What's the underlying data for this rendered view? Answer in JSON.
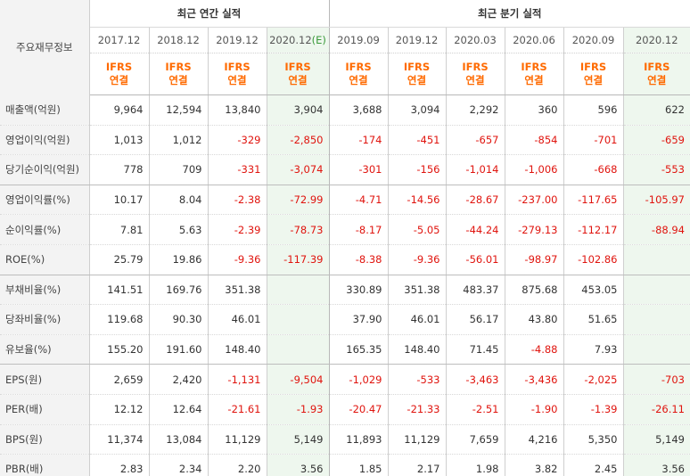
{
  "header": {
    "row_label": "주요재무정보",
    "annual_title": "최근 연간 실적",
    "quarterly_title": "최근 분기 실적",
    "annual_periods": [
      "2017.12",
      "2018.12",
      "2019.12",
      "2020.12"
    ],
    "quarterly_periods": [
      "2019.09",
      "2019.12",
      "2020.03",
      "2020.06",
      "2020.09",
      "2020.12"
    ],
    "estimate_mark": "(E)",
    "ifrs_line1": "IFRS",
    "ifrs_line2": "연결"
  },
  "rows": [
    {
      "label": "매출액(억원)",
      "values": [
        "9,964",
        "12,594",
        "13,840",
        "3,904",
        "3,688",
        "3,094",
        "2,292",
        "360",
        "596",
        "622"
      ]
    },
    {
      "label": "영업이익(억원)",
      "values": [
        "1,013",
        "1,012",
        "-329",
        "-2,850",
        "-174",
        "-451",
        "-657",
        "-854",
        "-701",
        "-659"
      ]
    },
    {
      "label": "당기순이익(억원)",
      "values": [
        "778",
        "709",
        "-331",
        "-3,074",
        "-301",
        "-156",
        "-1,014",
        "-1,006",
        "-668",
        "-553"
      ]
    },
    {
      "label": "영업이익률(%)",
      "values": [
        "10.17",
        "8.04",
        "-2.38",
        "-72.99",
        "-4.71",
        "-14.56",
        "-28.67",
        "-237.00",
        "-117.65",
        "-105.97"
      ]
    },
    {
      "label": "순이익률(%)",
      "values": [
        "7.81",
        "5.63",
        "-2.39",
        "-78.73",
        "-8.17",
        "-5.05",
        "-44.24",
        "-279.13",
        "-112.17",
        "-88.94"
      ]
    },
    {
      "label": "ROE(%)",
      "values": [
        "25.79",
        "19.86",
        "-9.36",
        "-117.39",
        "-8.38",
        "-9.36",
        "-56.01",
        "-98.97",
        "-102.86",
        ""
      ]
    },
    {
      "label": "부채비율(%)",
      "values": [
        "141.51",
        "169.76",
        "351.38",
        "",
        "330.89",
        "351.38",
        "483.37",
        "875.68",
        "453.05",
        ""
      ]
    },
    {
      "label": "당좌비율(%)",
      "values": [
        "119.68",
        "90.30",
        "46.01",
        "",
        "37.90",
        "46.01",
        "56.17",
        "43.80",
        "51.65",
        ""
      ]
    },
    {
      "label": "유보율(%)",
      "values": [
        "155.20",
        "191.60",
        "148.40",
        "",
        "165.35",
        "148.40",
        "71.45",
        "-4.88",
        "7.93",
        ""
      ]
    },
    {
      "label": "EPS(원)",
      "values": [
        "2,659",
        "2,420",
        "-1,131",
        "-9,504",
        "-1,029",
        "-533",
        "-3,463",
        "-3,436",
        "-2,025",
        "-703"
      ]
    },
    {
      "label": "PER(배)",
      "values": [
        "12.12",
        "12.64",
        "-21.61",
        "-1.93",
        "-20.47",
        "-21.33",
        "-2.51",
        "-1.90",
        "-1.39",
        "-26.11"
      ]
    },
    {
      "label": "BPS(원)",
      "values": [
        "11,374",
        "13,084",
        "11,129",
        "5,149",
        "11,893",
        "11,129",
        "7,659",
        "4,216",
        "5,350",
        "5,149"
      ]
    },
    {
      "label": "PBR(배)",
      "values": [
        "2.83",
        "2.34",
        "2.20",
        "3.56",
        "1.85",
        "2.17",
        "1.98",
        "3.82",
        "2.45",
        "3.56"
      ]
    }
  ],
  "colors": {
    "negative": "#e0140e",
    "ifrs": "#ff6a00",
    "estimate_bg": "#eef7ee",
    "label_bg": "#f3f3f3"
  }
}
